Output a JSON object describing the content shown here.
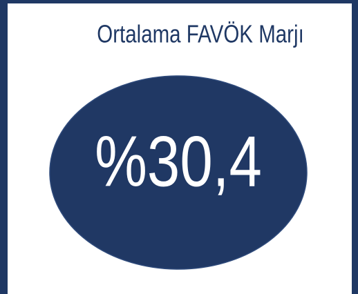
{
  "title": "Ortalama FAVÖK Marjı",
  "value": "%30,4"
}
